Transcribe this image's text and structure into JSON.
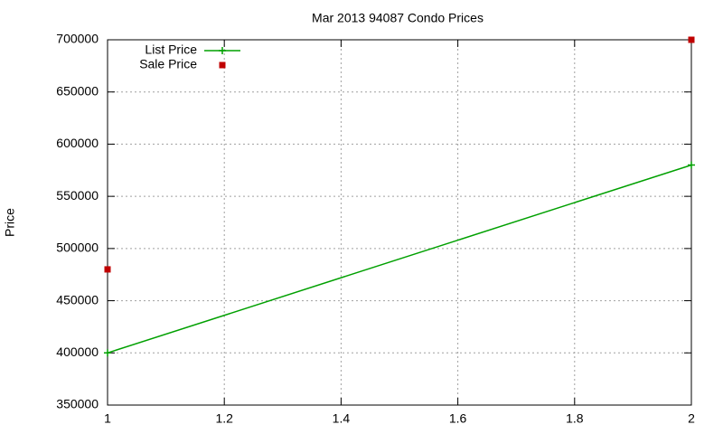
{
  "chart_data": {
    "type": "line",
    "title": "Mar 2013 94087 Condo Prices",
    "y_label": "Price",
    "x": [
      1,
      2
    ],
    "series": [
      {
        "name": "List Price",
        "color": "#00a000",
        "marker": "plus",
        "line": true,
        "values": [
          400000,
          580000
        ]
      },
      {
        "name": "Sale Price",
        "color": "#c00000",
        "marker": "square",
        "line": false,
        "values": [
          480000,
          700000
        ]
      }
    ],
    "xlim": [
      1,
      2
    ],
    "xticks": [
      1,
      1.2,
      1.4,
      1.6,
      1.8,
      2
    ],
    "ylim": [
      350000,
      700000
    ],
    "yticks": [
      350000,
      400000,
      450000,
      500000,
      550000,
      600000,
      650000,
      700000
    ],
    "grid": true,
    "legend": "top-left"
  }
}
